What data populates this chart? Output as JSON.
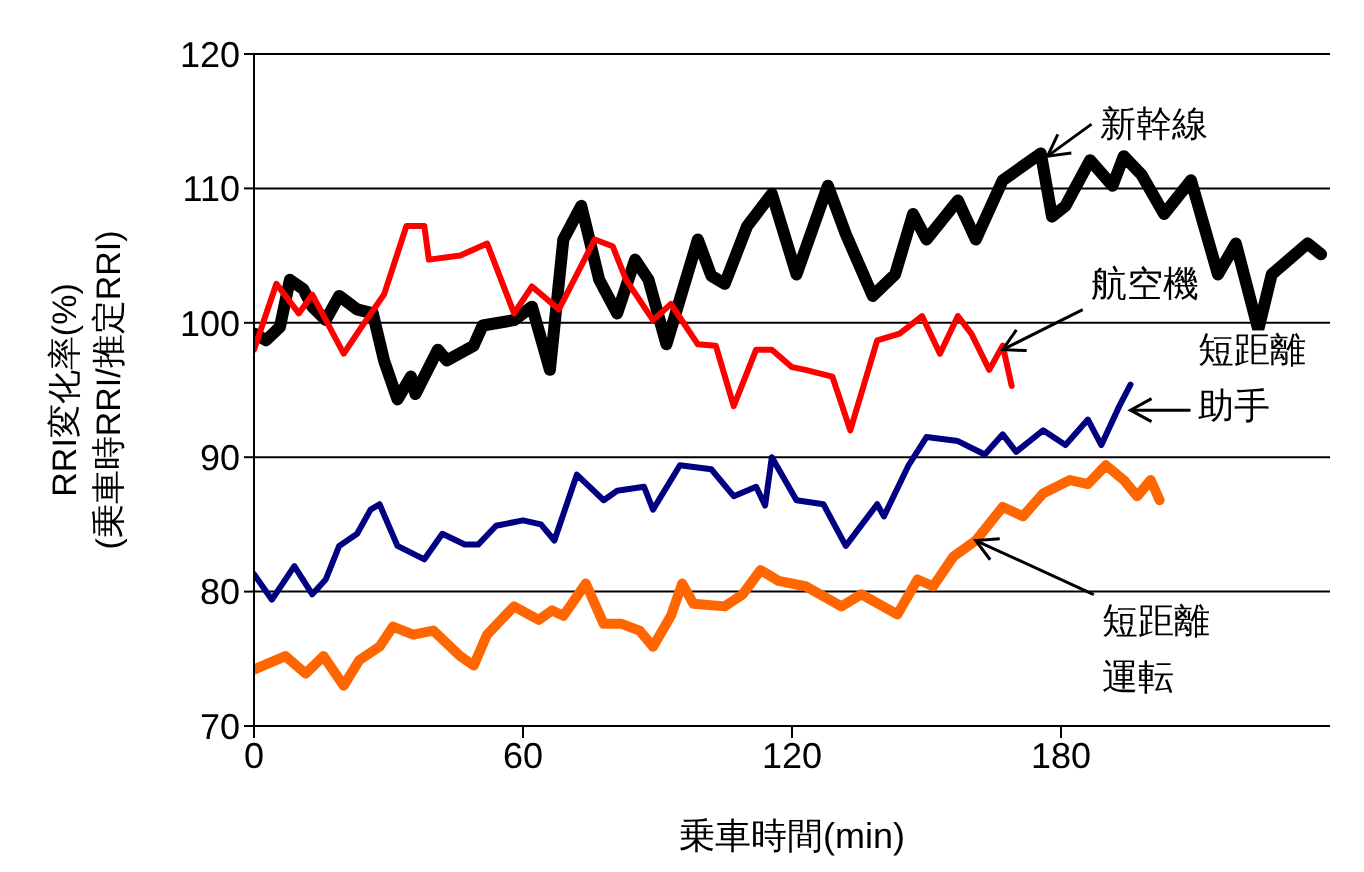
{
  "chart_data": {
    "type": "line",
    "xlabel": "乗車時間(min)",
    "ylabel": "RRI変化率(%)\n(乗車時RRI/推定RRI)",
    "xlim": [
      0,
      240
    ],
    "xticks": [
      0,
      60,
      120,
      180
    ],
    "ylim": [
      70,
      120
    ],
    "yticks": [
      70,
      80,
      90,
      100,
      110,
      120
    ],
    "grid": "y",
    "legend": false,
    "marker": "none",
    "line_style": "solid",
    "series": [
      {
        "color": "#000000",
        "x": [
          0,
          2.7,
          5.8,
          8,
          11,
          13,
          16,
          19,
          23,
          26.5,
          29,
          32,
          35,
          36,
          41,
          43,
          49,
          51,
          58,
          62,
          66,
          69,
          73,
          77,
          81,
          85,
          88,
          92,
          99,
          102,
          105,
          110,
          115.5,
          121,
          128,
          132,
          138,
          143,
          147,
          150,
          157,
          161,
          167,
          175.5,
          178,
          181,
          186.5,
          191.5,
          194,
          198,
          203,
          209,
          215,
          219,
          224,
          227,
          235,
          238
        ],
        "values": [
          99.2,
          98.7,
          99.7,
          103.2,
          102.5,
          101.2,
          100.2,
          102,
          101,
          100.7,
          97.2,
          94.3,
          96,
          94.7,
          98,
          97.2,
          98.3,
          99.8,
          100.2,
          101.2,
          96.5,
          106.2,
          108.7,
          103.2,
          100.7,
          104.7,
          103.2,
          98.4,
          106.2,
          103.5,
          102.9,
          107.2,
          109.6,
          103.6,
          110.2,
          106.6,
          102,
          103.6,
          108.1,
          106.2,
          109.1,
          106.2,
          110.6,
          112.6,
          107.9,
          108.7,
          112.1,
          110.2,
          112.4,
          111,
          108.1,
          110.6,
          103.6,
          105.9,
          99.5,
          103.6,
          105.9,
          105.1
        ]
      },
      {
        "color": "#ff0000",
        "x": [
          0,
          5,
          10,
          13,
          20,
          24,
          29,
          34,
          38,
          39,
          46,
          52,
          58,
          62,
          68,
          76,
          80,
          83,
          89,
          93,
          99,
          103,
          107,
          112,
          115.5,
          120,
          123,
          129,
          133,
          139,
          144,
          149,
          153,
          157,
          160,
          164,
          167,
          169
        ],
        "values": [
          98,
          102.9,
          100.7,
          102.1,
          97.7,
          99.7,
          102.1,
          107.2,
          107.2,
          104.7,
          105,
          105.9,
          100.7,
          102.7,
          101,
          106.2,
          105.7,
          103.2,
          100.2,
          101.4,
          98.4,
          98.3,
          93.8,
          98,
          98,
          96.7,
          96.5,
          96,
          92,
          98.7,
          99.2,
          100.5,
          97.7,
          100.5,
          99.2,
          96.5,
          98.3,
          95.3
        ]
      },
      {
        "color": "#000080",
        "x": [
          0,
          4,
          9,
          13,
          16,
          19,
          23,
          26,
          28,
          32,
          38,
          42,
          47,
          50,
          54,
          60,
          64,
          67,
          72,
          78,
          81,
          87,
          89,
          95,
          102,
          107,
          112,
          114,
          115.5,
          121,
          127,
          132,
          139,
          140.5,
          146,
          150,
          157,
          163,
          167,
          170,
          176,
          181,
          186,
          189,
          193,
          195.5
        ],
        "values": [
          81.3,
          79.4,
          81.9,
          79.8,
          80.9,
          83.4,
          84.3,
          86.1,
          86.5,
          83.4,
          82.4,
          84.3,
          83.5,
          83.5,
          84.9,
          85.3,
          85,
          83.8,
          88.7,
          86.8,
          87.5,
          87.8,
          86.1,
          89.4,
          89.1,
          87.1,
          87.8,
          86.4,
          90,
          86.8,
          86.5,
          83.4,
          86.5,
          85.6,
          89.4,
          91.5,
          91.2,
          90.2,
          91.7,
          90.4,
          92,
          90.9,
          92.8,
          90.9,
          93.8,
          95.4
        ]
      },
      {
        "color": "#ff6600",
        "x": [
          0,
          7,
          11.5,
          15.5,
          20,
          23.5,
          28,
          31,
          35.5,
          40,
          46,
          49,
          52,
          58,
          63.5,
          66.5,
          69,
          74,
          78,
          82,
          86,
          89,
          93,
          95.5,
          98,
          105,
          109,
          113,
          117,
          123,
          131,
          135.5,
          143.5,
          148,
          151.5,
          156,
          161,
          167,
          171.5,
          176,
          182,
          186,
          190,
          194,
          197,
          200,
          202
        ],
        "values": [
          74.2,
          75.2,
          73.9,
          75.2,
          73,
          74.9,
          75.9,
          77.4,
          76.8,
          77.1,
          75.2,
          74.5,
          76.8,
          78.9,
          77.9,
          78.6,
          78.2,
          80.6,
          77.6,
          77.6,
          77.1,
          75.9,
          78.2,
          80.6,
          79.1,
          78.9,
          79.8,
          81.6,
          80.8,
          80.4,
          78.9,
          79.8,
          78.3,
          80.9,
          80.4,
          82.6,
          83.8,
          86.3,
          85.6,
          87.3,
          88.3,
          88,
          89.4,
          88.3,
          87.1,
          88.3,
          86.8
        ]
      }
    ],
    "annotations": [
      {
        "text": "新幹線",
        "x": 177,
        "y": 112.4
      },
      {
        "text": "航空機",
        "x": 167,
        "y": 98
      },
      {
        "text": "短距離助手",
        "x": 195.5,
        "y": 93.5
      },
      {
        "text": "短距離運転",
        "x": 161,
        "y": 83.8
      }
    ]
  }
}
